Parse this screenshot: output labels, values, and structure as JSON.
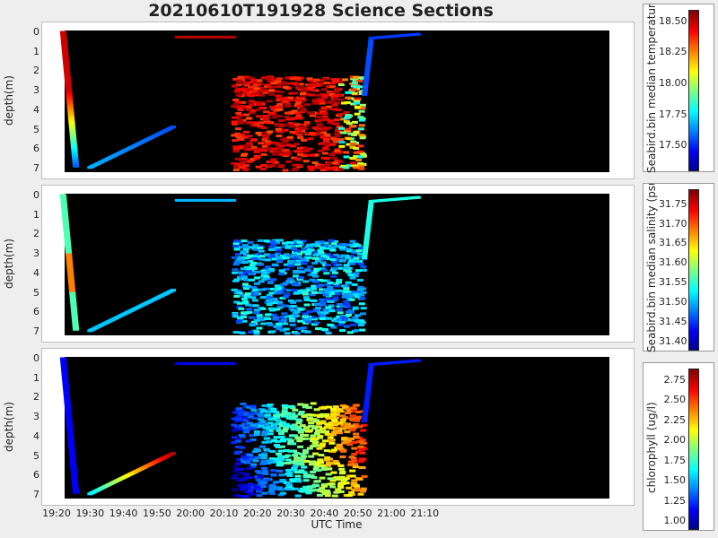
{
  "title": "20210610T191928 Science Sections",
  "chart_data": [
    {
      "type": "heatmap",
      "ylabel": "depth(m)",
      "yticks": [
        "0",
        "1",
        "2",
        "3",
        "4",
        "5",
        "6",
        "7"
      ],
      "ylim": [
        7.3,
        -0.2
      ],
      "colorbar": {
        "label": "Seabird.bin median temperature (degC)",
        "range": [
          17.3,
          18.6
        ],
        "ticks": [
          "18.50",
          "18.25",
          "18.00",
          "17.75",
          "17.50"
        ],
        "tick_values": [
          18.5,
          18.25,
          18.0,
          17.75,
          17.5
        ]
      }
    },
    {
      "type": "heatmap",
      "ylabel": "depth(m)",
      "yticks": [
        "0",
        "1",
        "2",
        "3",
        "4",
        "5",
        "6",
        "7"
      ],
      "ylim": [
        7.3,
        -0.2
      ],
      "colorbar": {
        "label": "Seabird.bin median salinity (psu)",
        "range": [
          31.38,
          31.79
        ],
        "ticks": [
          "31.75",
          "31.70",
          "31.65",
          "31.60",
          "31.55",
          "31.50",
          "31.45",
          "31.40"
        ],
        "tick_values": [
          31.75,
          31.7,
          31.65,
          31.6,
          31.55,
          31.5,
          31.45,
          31.4
        ]
      }
    },
    {
      "type": "heatmap",
      "ylabel": "depth(m)",
      "yticks": [
        "0",
        "1",
        "2",
        "3",
        "4",
        "5",
        "6",
        "7"
      ],
      "ylim": [
        7.3,
        -0.2
      ],
      "colorbar": {
        "label": "chlorophyll (ug/l)",
        "range": [
          0.9,
          2.9
        ],
        "ticks": [
          "2.75",
          "2.50",
          "2.25",
          "2.00",
          "1.75",
          "1.50",
          "1.25",
          "1.00"
        ],
        "tick_values": [
          2.75,
          2.5,
          2.25,
          2.0,
          1.75,
          1.5,
          1.25,
          1.0
        ]
      }
    }
  ],
  "xaxis": {
    "label": "UTC Time",
    "ticks": [
      "19:20",
      "19:30",
      "19:40",
      "19:50",
      "20:00",
      "20:10",
      "20:20",
      "20:30",
      "20:40",
      "20:50",
      "21:00",
      "21:10"
    ]
  }
}
